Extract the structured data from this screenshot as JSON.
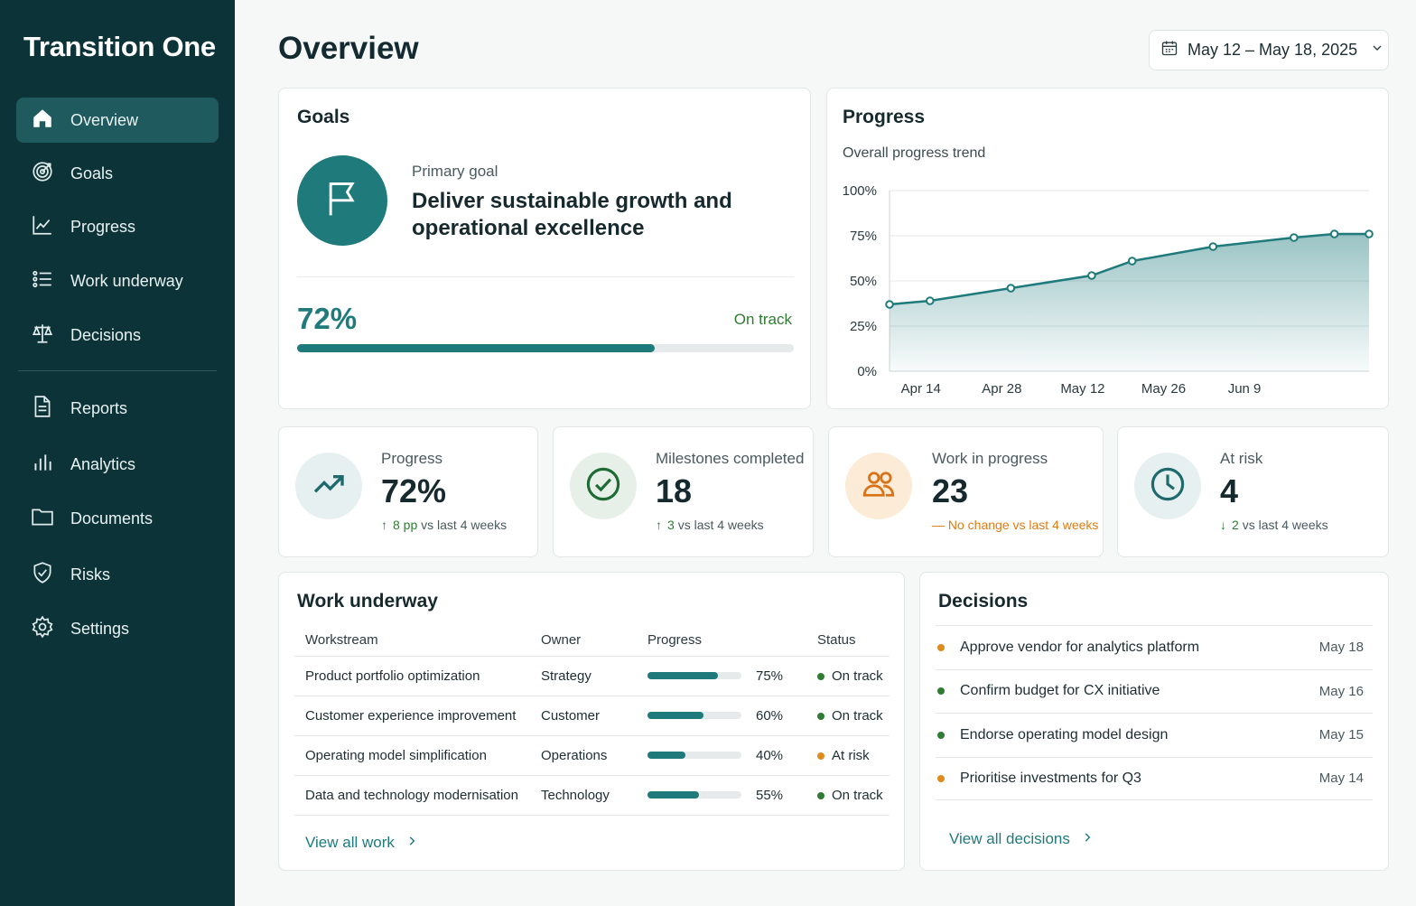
{
  "app": {
    "title": "Transition One"
  },
  "sidebar": {
    "items": [
      {
        "label": "Overview",
        "icon": "home-icon",
        "active": true
      },
      {
        "label": "Goals",
        "icon": "target-icon"
      },
      {
        "label": "Progress",
        "icon": "line-chart-icon"
      },
      {
        "label": "Work underway",
        "icon": "list-icon"
      },
      {
        "label": "Decisions",
        "icon": "scale-icon"
      },
      {
        "label": "Reports",
        "icon": "document-icon"
      },
      {
        "label": "Analytics",
        "icon": "bar-chart-icon"
      },
      {
        "label": "Documents",
        "icon": "folder-icon"
      },
      {
        "label": "Risks",
        "icon": "shield-check-icon"
      },
      {
        "label": "Settings",
        "icon": "gear-icon"
      }
    ]
  },
  "header": {
    "title": "Overview",
    "date_range": "May 12 – May 18, 2025"
  },
  "goals": {
    "title": "Goals",
    "label": "Primary goal",
    "text": "Deliver sustainable growth and operational excellence",
    "percent_label": "72%",
    "progress": 0.72,
    "status": "On track"
  },
  "progress_card": {
    "title": "Progress",
    "subtitle": "Overall progress trend"
  },
  "chart_data": {
    "type": "area",
    "title": "Overall progress trend",
    "y_ticks": [
      "100%",
      "75%",
      "50%",
      "25%",
      "0%"
    ],
    "x_ticks": [
      "Apr 14",
      "Apr 28",
      "May 12",
      "May 26",
      "Jun 9"
    ],
    "x": [
      "2025-04-07",
      "2025-04-14",
      "2025-04-28",
      "2025-05-12",
      "2025-05-19",
      "2025-06-02",
      "2025-06-16",
      "2025-06-23",
      "2025-06-29"
    ],
    "series": [
      {
        "values": [
          37,
          39,
          46,
          53,
          61,
          69,
          74,
          76,
          76
        ]
      }
    ],
    "ylim": [
      0,
      100
    ],
    "grid": true,
    "accent": "#1f7a7c"
  },
  "kpis": [
    {
      "label": "Progress",
      "value": "72%",
      "delta_num": "8 pp",
      "delta_text": "vs last 4 weeks",
      "trend": "up",
      "icon": "trending-up-icon"
    },
    {
      "label": "Milestones completed",
      "value": "18",
      "delta_num": "3",
      "delta_text": "vs last 4 weeks",
      "trend": "up",
      "icon": "check-circle-icon"
    },
    {
      "label": "Work in progress",
      "value": "23",
      "delta_num": "",
      "delta_text": "No change vs last 4 weeks",
      "trend": "flat",
      "icon": "users-icon"
    },
    {
      "label": "At risk",
      "value": "4",
      "delta_num": "2",
      "delta_text": "vs last 4 weeks",
      "trend": "down",
      "icon": "clock-icon"
    }
  ],
  "work": {
    "title": "Work underway",
    "columns": [
      "Workstream",
      "Owner",
      "Progress",
      "Status"
    ],
    "rows": [
      {
        "workstream": "Product portfolio optimization",
        "owner": "Strategy",
        "progress": 0.75,
        "progress_label": "75%",
        "status": "On track",
        "status_color": "#2e7d32"
      },
      {
        "workstream": "Customer experience improvement",
        "owner": "Customer",
        "progress": 0.6,
        "progress_label": "60%",
        "status": "On track",
        "status_color": "#2e7d32"
      },
      {
        "workstream": "Operating model simplification",
        "owner": "Operations",
        "progress": 0.4,
        "progress_label": "40%",
        "status": "At risk",
        "status_color": "#e08a1e"
      },
      {
        "workstream": "Data and technology modernisation",
        "owner": "Technology",
        "progress": 0.55,
        "progress_label": "55%",
        "status": "On track",
        "status_color": "#2e7d32"
      }
    ],
    "link": "View all work"
  },
  "decisions": {
    "title": "Decisions",
    "items": [
      {
        "text": "Approve vendor for analytics platform",
        "date": "May 18",
        "color": "#e08a1e"
      },
      {
        "text": "Confirm budget for CX initiative",
        "date": "May 16",
        "color": "#2e7d32"
      },
      {
        "text": "Endorse operating model design",
        "date": "May 15",
        "color": "#2e7d32"
      },
      {
        "text": "Prioritise investments for Q3",
        "date": "May 14",
        "color": "#e08a1e"
      }
    ],
    "link": "View all decisions"
  }
}
